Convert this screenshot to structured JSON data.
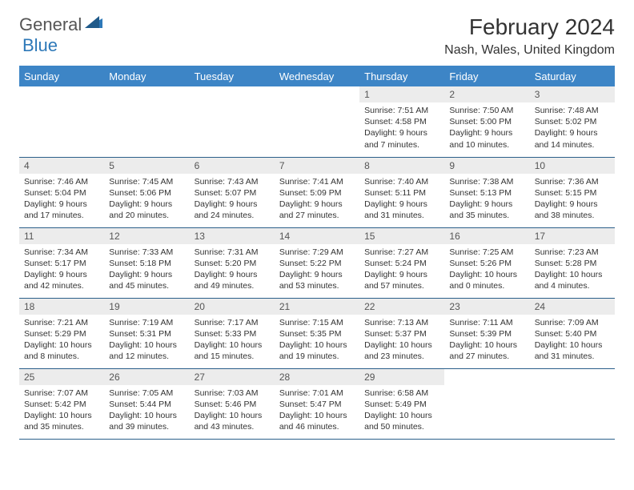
{
  "logo": {
    "text1": "General",
    "text2": "Blue"
  },
  "title": "February 2024",
  "location": "Nash, Wales, United Kingdom",
  "colors": {
    "header_bg": "#3d85c6",
    "header_text": "#ffffff",
    "daynum_bg": "#ececec",
    "border": "#2b5f8a",
    "logo_blue": "#2d78b8"
  },
  "weekdays": [
    "Sunday",
    "Monday",
    "Tuesday",
    "Wednesday",
    "Thursday",
    "Friday",
    "Saturday"
  ],
  "weeks": [
    [
      {
        "empty": true
      },
      {
        "empty": true
      },
      {
        "empty": true
      },
      {
        "empty": true
      },
      {
        "day": "1",
        "sunrise": "Sunrise: 7:51 AM",
        "sunset": "Sunset: 4:58 PM",
        "daylight1": "Daylight: 9 hours",
        "daylight2": "and 7 minutes."
      },
      {
        "day": "2",
        "sunrise": "Sunrise: 7:50 AM",
        "sunset": "Sunset: 5:00 PM",
        "daylight1": "Daylight: 9 hours",
        "daylight2": "and 10 minutes."
      },
      {
        "day": "3",
        "sunrise": "Sunrise: 7:48 AM",
        "sunset": "Sunset: 5:02 PM",
        "daylight1": "Daylight: 9 hours",
        "daylight2": "and 14 minutes."
      }
    ],
    [
      {
        "day": "4",
        "sunrise": "Sunrise: 7:46 AM",
        "sunset": "Sunset: 5:04 PM",
        "daylight1": "Daylight: 9 hours",
        "daylight2": "and 17 minutes."
      },
      {
        "day": "5",
        "sunrise": "Sunrise: 7:45 AM",
        "sunset": "Sunset: 5:06 PM",
        "daylight1": "Daylight: 9 hours",
        "daylight2": "and 20 minutes."
      },
      {
        "day": "6",
        "sunrise": "Sunrise: 7:43 AM",
        "sunset": "Sunset: 5:07 PM",
        "daylight1": "Daylight: 9 hours",
        "daylight2": "and 24 minutes."
      },
      {
        "day": "7",
        "sunrise": "Sunrise: 7:41 AM",
        "sunset": "Sunset: 5:09 PM",
        "daylight1": "Daylight: 9 hours",
        "daylight2": "and 27 minutes."
      },
      {
        "day": "8",
        "sunrise": "Sunrise: 7:40 AM",
        "sunset": "Sunset: 5:11 PM",
        "daylight1": "Daylight: 9 hours",
        "daylight2": "and 31 minutes."
      },
      {
        "day": "9",
        "sunrise": "Sunrise: 7:38 AM",
        "sunset": "Sunset: 5:13 PM",
        "daylight1": "Daylight: 9 hours",
        "daylight2": "and 35 minutes."
      },
      {
        "day": "10",
        "sunrise": "Sunrise: 7:36 AM",
        "sunset": "Sunset: 5:15 PM",
        "daylight1": "Daylight: 9 hours",
        "daylight2": "and 38 minutes."
      }
    ],
    [
      {
        "day": "11",
        "sunrise": "Sunrise: 7:34 AM",
        "sunset": "Sunset: 5:17 PM",
        "daylight1": "Daylight: 9 hours",
        "daylight2": "and 42 minutes."
      },
      {
        "day": "12",
        "sunrise": "Sunrise: 7:33 AM",
        "sunset": "Sunset: 5:18 PM",
        "daylight1": "Daylight: 9 hours",
        "daylight2": "and 45 minutes."
      },
      {
        "day": "13",
        "sunrise": "Sunrise: 7:31 AM",
        "sunset": "Sunset: 5:20 PM",
        "daylight1": "Daylight: 9 hours",
        "daylight2": "and 49 minutes."
      },
      {
        "day": "14",
        "sunrise": "Sunrise: 7:29 AM",
        "sunset": "Sunset: 5:22 PM",
        "daylight1": "Daylight: 9 hours",
        "daylight2": "and 53 minutes."
      },
      {
        "day": "15",
        "sunrise": "Sunrise: 7:27 AM",
        "sunset": "Sunset: 5:24 PM",
        "daylight1": "Daylight: 9 hours",
        "daylight2": "and 57 minutes."
      },
      {
        "day": "16",
        "sunrise": "Sunrise: 7:25 AM",
        "sunset": "Sunset: 5:26 PM",
        "daylight1": "Daylight: 10 hours",
        "daylight2": "and 0 minutes."
      },
      {
        "day": "17",
        "sunrise": "Sunrise: 7:23 AM",
        "sunset": "Sunset: 5:28 PM",
        "daylight1": "Daylight: 10 hours",
        "daylight2": "and 4 minutes."
      }
    ],
    [
      {
        "day": "18",
        "sunrise": "Sunrise: 7:21 AM",
        "sunset": "Sunset: 5:29 PM",
        "daylight1": "Daylight: 10 hours",
        "daylight2": "and 8 minutes."
      },
      {
        "day": "19",
        "sunrise": "Sunrise: 7:19 AM",
        "sunset": "Sunset: 5:31 PM",
        "daylight1": "Daylight: 10 hours",
        "daylight2": "and 12 minutes."
      },
      {
        "day": "20",
        "sunrise": "Sunrise: 7:17 AM",
        "sunset": "Sunset: 5:33 PM",
        "daylight1": "Daylight: 10 hours",
        "daylight2": "and 15 minutes."
      },
      {
        "day": "21",
        "sunrise": "Sunrise: 7:15 AM",
        "sunset": "Sunset: 5:35 PM",
        "daylight1": "Daylight: 10 hours",
        "daylight2": "and 19 minutes."
      },
      {
        "day": "22",
        "sunrise": "Sunrise: 7:13 AM",
        "sunset": "Sunset: 5:37 PM",
        "daylight1": "Daylight: 10 hours",
        "daylight2": "and 23 minutes."
      },
      {
        "day": "23",
        "sunrise": "Sunrise: 7:11 AM",
        "sunset": "Sunset: 5:39 PM",
        "daylight1": "Daylight: 10 hours",
        "daylight2": "and 27 minutes."
      },
      {
        "day": "24",
        "sunrise": "Sunrise: 7:09 AM",
        "sunset": "Sunset: 5:40 PM",
        "daylight1": "Daylight: 10 hours",
        "daylight2": "and 31 minutes."
      }
    ],
    [
      {
        "day": "25",
        "sunrise": "Sunrise: 7:07 AM",
        "sunset": "Sunset: 5:42 PM",
        "daylight1": "Daylight: 10 hours",
        "daylight2": "and 35 minutes."
      },
      {
        "day": "26",
        "sunrise": "Sunrise: 7:05 AM",
        "sunset": "Sunset: 5:44 PM",
        "daylight1": "Daylight: 10 hours",
        "daylight2": "and 39 minutes."
      },
      {
        "day": "27",
        "sunrise": "Sunrise: 7:03 AM",
        "sunset": "Sunset: 5:46 PM",
        "daylight1": "Daylight: 10 hours",
        "daylight2": "and 43 minutes."
      },
      {
        "day": "28",
        "sunrise": "Sunrise: 7:01 AM",
        "sunset": "Sunset: 5:47 PM",
        "daylight1": "Daylight: 10 hours",
        "daylight2": "and 46 minutes."
      },
      {
        "day": "29",
        "sunrise": "Sunrise: 6:58 AM",
        "sunset": "Sunset: 5:49 PM",
        "daylight1": "Daylight: 10 hours",
        "daylight2": "and 50 minutes."
      },
      {
        "empty": true
      },
      {
        "empty": true
      }
    ]
  ]
}
